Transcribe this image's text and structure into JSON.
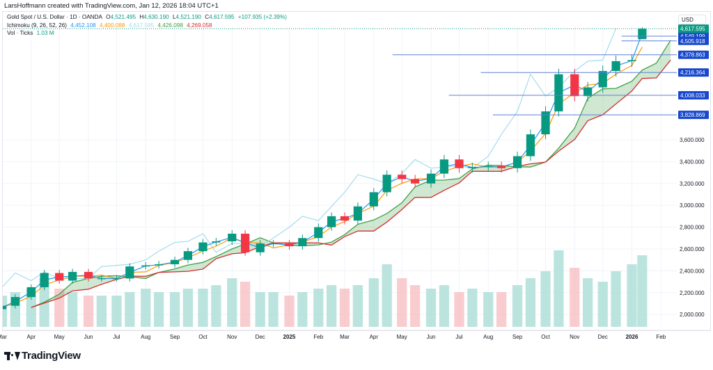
{
  "credit": "LarsHoffmann created with TradingView.com, Jan 12, 2026 18:04 UTC+1",
  "legend": {
    "symbol": "Gold Spot / U.S. Dollar · 1D · OANDA",
    "o_label": "O",
    "o": "4,521.495",
    "h_label": "H",
    "h": "4,630.190",
    "l_label": "L",
    "l": "4,521.190",
    "c_label": "C",
    "c": "4,617.595",
    "change": "+107.935 (+2.39%)",
    "ichimoku": "Ichimoku (9, 26, 52, 26)",
    "ichimoku_values": [
      "4,452.108",
      "4,400.088",
      "4,617.595",
      "4,426.098",
      "4,269.058"
    ],
    "volume": "Vol · Ticks",
    "volume_value": "1.03 M"
  },
  "currency": "USD",
  "brand": "TradingView",
  "colors": {
    "up": "#089981",
    "down": "#f23645",
    "tenkan": "#2196f3",
    "kijun": "#ff9800",
    "lagging": "#a5dcec",
    "span_a": "#43a047",
    "span_b": "#d32f2f",
    "cloud": "#43a04740",
    "level_line": "#5b7fd6",
    "level_label": "#1848cc",
    "last_price": "#089981",
    "volume_up": "#9fd8d2",
    "volume_down": "#f7b6bb"
  },
  "chart_data": {
    "type": "candlestick",
    "symbol": "XAUUSD",
    "interval": "1D",
    "dates": [
      "2024-03-01",
      "2024-03-15",
      "2024-04-01",
      "2024-04-15",
      "2024-05-01",
      "2024-05-15",
      "2024-06-01",
      "2024-06-15",
      "2024-07-01",
      "2024-07-15",
      "2024-08-01",
      "2024-08-15",
      "2024-09-01",
      "2024-09-15",
      "2024-10-01",
      "2024-10-15",
      "2024-11-01",
      "2024-11-15",
      "2024-12-01",
      "2024-12-15",
      "2025-01-01",
      "2025-01-15",
      "2025-02-01",
      "2025-02-15",
      "2025-03-01",
      "2025-03-15",
      "2025-04-01",
      "2025-04-15",
      "2025-05-01",
      "2025-05-15",
      "2025-06-01",
      "2025-06-15",
      "2025-07-01",
      "2025-07-15",
      "2025-08-01",
      "2025-08-15",
      "2025-09-01",
      "2025-09-15",
      "2025-10-01",
      "2025-10-15",
      "2025-11-01",
      "2025-11-15",
      "2025-12-01",
      "2025-12-15",
      "2026-01-01",
      "2026-01-12"
    ],
    "close": [
      2080,
      2160,
      2250,
      2380,
      2310,
      2390,
      2330,
      2330,
      2330,
      2440,
      2450,
      2460,
      2500,
      2580,
      2660,
      2670,
      2740,
      2570,
      2650,
      2650,
      2625,
      2700,
      2800,
      2900,
      2860,
      2990,
      3120,
      3280,
      3240,
      3200,
      3290,
      3420,
      3340,
      3350,
      3360,
      3340,
      3450,
      3650,
      3860,
      4200,
      4000,
      4080,
      4230,
      4320,
      4330,
      4617.595
    ],
    "volume_m": [
      0.45,
      0.5,
      0.55,
      0.7,
      0.55,
      0.5,
      0.45,
      0.45,
      0.45,
      0.5,
      0.55,
      0.5,
      0.5,
      0.55,
      0.55,
      0.6,
      0.7,
      0.65,
      0.5,
      0.5,
      0.45,
      0.5,
      0.55,
      0.6,
      0.55,
      0.6,
      0.7,
      0.9,
      0.7,
      0.6,
      0.55,
      0.6,
      0.5,
      0.55,
      0.5,
      0.5,
      0.6,
      0.7,
      0.8,
      1.1,
      0.85,
      0.7,
      0.65,
      0.8,
      0.9,
      1.03
    ],
    "last_candle": {
      "open": 4521.495,
      "high": 4630.19,
      "low": 4521.19,
      "close": 4617.595
    },
    "levels": [
      {
        "price": 4549.199,
        "label": "4,549.199",
        "from": "2025-12-21"
      },
      {
        "price": 4505.918,
        "label": "4,505.918",
        "from": "2025-12-21"
      },
      {
        "price": 4378.863,
        "label": "4,378.863",
        "from": "2025-04-21"
      },
      {
        "price": 4216.364,
        "label": "4,216.364",
        "from": "2025-07-24"
      },
      {
        "price": 4008.033,
        "label": "4,008.033",
        "from": "2025-06-20"
      },
      {
        "price": 3828.869,
        "label": "3,828.869",
        "from": "2025-08-06"
      }
    ],
    "last_price_label": "4,617.595",
    "y_ticks": [
      2000,
      2200,
      2400,
      2600,
      2800,
      3000,
      3200,
      3400,
      3600
    ],
    "y_tick_labels": [
      "2,000.000",
      "2,200.000",
      "2,400.000",
      "2,600.000",
      "2,800.000",
      "3,000.000",
      "3,200.000",
      "3,400.000",
      "3,600.000"
    ],
    "x_ticks": [
      "2024-03-01",
      "2024-04-01",
      "2024-05-01",
      "2024-06-01",
      "2024-07-01",
      "2024-08-01",
      "2024-09-01",
      "2024-10-01",
      "2024-11-01",
      "2024-12-01",
      "2025-01-01",
      "2025-02-01",
      "2025-03-01",
      "2025-04-01",
      "2025-05-01",
      "2025-06-01",
      "2025-07-01",
      "2025-08-01",
      "2025-09-01",
      "2025-10-01",
      "2025-11-01",
      "2025-12-01",
      "2026-01-01",
      "2026-02-01"
    ],
    "x_tick_labels": [
      "Mar",
      "Apr",
      "May",
      "Jun",
      "Jul",
      "Aug",
      "Sep",
      "Oct",
      "Nov",
      "Dec",
      "2025",
      "Feb",
      "Mar",
      "Apr",
      "May",
      "Jun",
      "Jul",
      "Aug",
      "Sep",
      "Oct",
      "Nov",
      "Dec",
      "2026",
      "Feb"
    ],
    "ichimoku_params": {
      "conversion": 9,
      "base": 26,
      "span_b": 52,
      "displacement": 26
    },
    "grid": true,
    "y_axis_position": "right"
  }
}
